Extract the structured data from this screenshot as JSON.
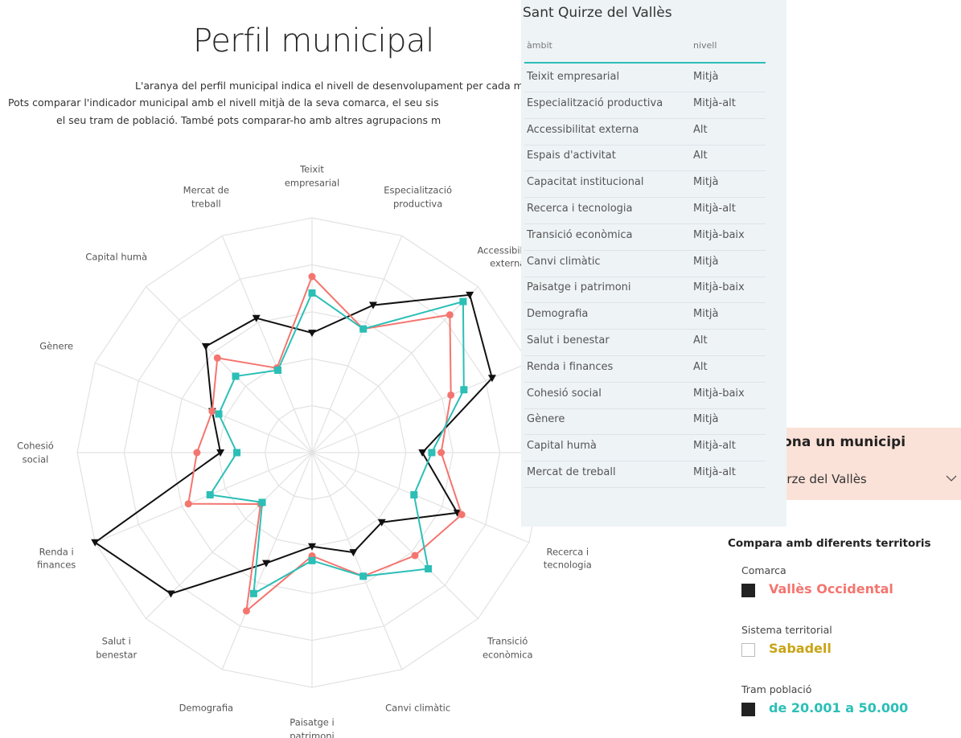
{
  "title": "Perfil municipal",
  "description": [
    "L'aranya del perfil municipal indica el nivell de desenvolupament per cada municip",
    "Pots comparar l'indicador municipal amb el nivell mitjà de la seva comarca, el seu sis",
    "el seu tram de població. També pots comparar-ho amb altres agrupacions m"
  ],
  "chart_data": {
    "type": "radar",
    "categories": [
      "Teixit\nempresarial",
      "Especialització\nproductiva",
      "Accessibilitat\nexterna",
      "Espais\nd'activitat",
      "Capacitat\ninstitucional",
      "Recerca i\ntecnologia",
      "Transició\neconòmica",
      "Canvi climàtic",
      "Paisatge i\npatrimoni",
      "Demografia",
      "Salut i\nbenestar",
      "Renda i\nfinances",
      "Cohesió\nsocial",
      "Gènere",
      "Capital humà",
      "Mercat de\ntreball"
    ],
    "series": [
      {
        "name": "Sant Quirze del Vallès",
        "color": "#111111",
        "marker": "triangle",
        "values": [
          51,
          68,
          95,
          83,
          47,
          67,
          42,
          46,
          40,
          51,
          85,
          100,
          39,
          46,
          64,
          62
        ]
      },
      {
        "name": "Vallès Occidental",
        "color": "#f4756f",
        "marker": "circle",
        "values": [
          75,
          57,
          83,
          64,
          55,
          69,
          62,
          57,
          44,
          73,
          31,
          57,
          49,
          46,
          57,
          39
        ]
      },
      {
        "name": "de 20.001 a 50.000",
        "color": "#2bbfb6",
        "marker": "square",
        "values": [
          68,
          57,
          91,
          70,
          51,
          47,
          70,
          57,
          46,
          65,
          30,
          47,
          32,
          43,
          46,
          38
        ]
      }
    ],
    "ylim": [
      0,
      100
    ],
    "yticks": [
      0,
      20,
      40,
      60,
      80,
      100
    ],
    "grid": true
  },
  "table": {
    "columns": [
      "àmbit",
      "nivell"
    ],
    "rows": [
      [
        "Teixit empresarial",
        "Mitjà"
      ],
      [
        "Especialització productiva",
        "Mitjà-alt"
      ],
      [
        "Accessibilitat externa",
        "Alt"
      ],
      [
        "Espais d'activitat",
        "Alt"
      ],
      [
        "Capacitat institucional",
        "Mitjà"
      ],
      [
        "Recerca i tecnologia",
        "Mitjà-alt"
      ],
      [
        "Transició econòmica",
        "Mitjà-baix"
      ],
      [
        "Canvi climàtic",
        "Mitjà"
      ],
      [
        "Paisatge i patrimoni",
        "Mitjà-baix"
      ],
      [
        "Demografia",
        "Mitjà"
      ],
      [
        "Salut i benestar",
        "Alt"
      ],
      [
        "Renda i finances",
        "Alt"
      ],
      [
        "Cohesió social",
        "Mitjà-baix"
      ],
      [
        "Gènere",
        "Mitjà"
      ],
      [
        "Capital humà",
        "Mitjà-alt"
      ],
      [
        "Mercat de treball",
        "Mitjà-alt"
      ]
    ]
  },
  "slicer": {
    "label": "Selecciona un municipi"
  },
  "compare": {
    "title": "Compara amb diferents territoris",
    "groups": [
      {
        "label": "Comarca",
        "checked": true
      },
      {
        "label": "Sistema territorial",
        "value": "Sabadell",
        "color": "#c9a414",
        "checked": false
      },
      {
        "label": "Tram població",
        "checked": true
      }
    ]
  }
}
